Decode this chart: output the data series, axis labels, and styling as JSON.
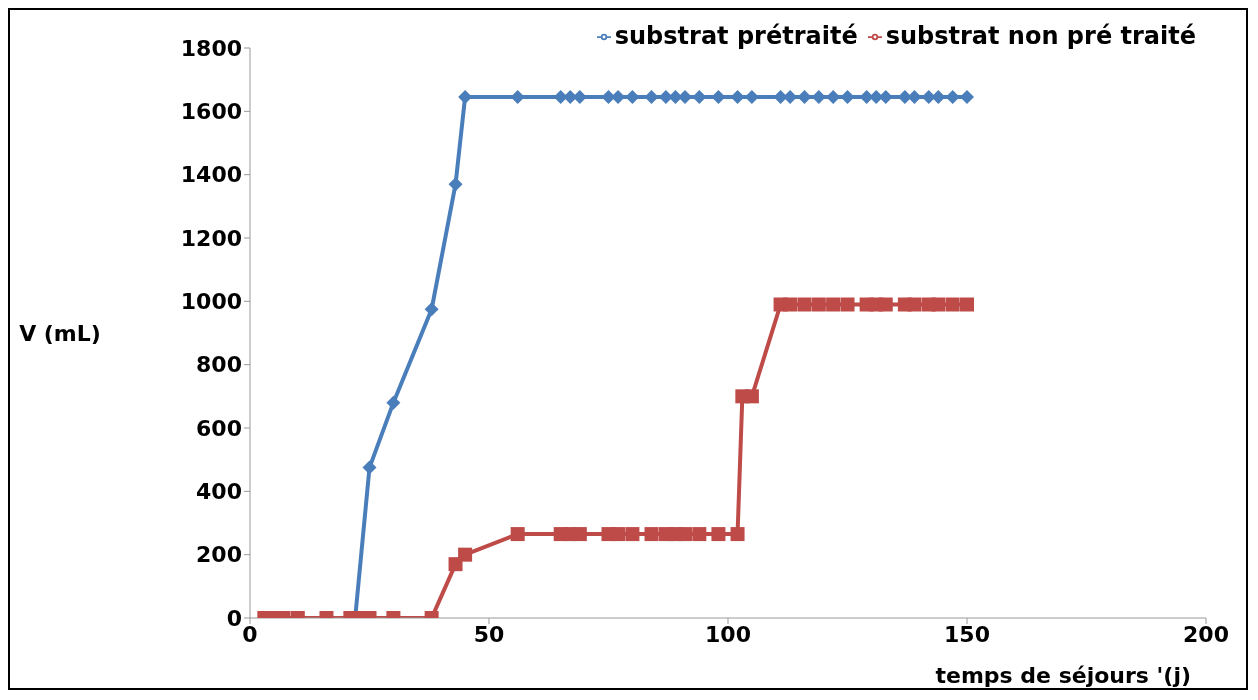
{
  "chart_data": {
    "type": "line",
    "xlabel": "temps de séjours '(j)",
    "ylabel": "V (mL)",
    "xlim": [
      0,
      200
    ],
    "xticks": [
      0,
      50,
      100,
      150,
      200
    ],
    "ylim": [
      0,
      1800
    ],
    "yticks": [
      0,
      200,
      400,
      600,
      800,
      1000,
      1200,
      1400,
      1600,
      1800
    ],
    "grid": false,
    "legend": "top right",
    "series": [
      {
        "name": "substrat prétraité",
        "color": "#4a7ebb",
        "marker": "diamond",
        "x": [
          22,
          25,
          30,
          38,
          43,
          45,
          56,
          65,
          67,
          69,
          75,
          77,
          80,
          84,
          87,
          89,
          91,
          94,
          98,
          102,
          105,
          111,
          113,
          116,
          119,
          122,
          125,
          129,
          131,
          133,
          137,
          139,
          142,
          144,
          147,
          150
        ],
        "values": [
          0,
          475,
          680,
          975,
          1370,
          1645,
          1645,
          1645,
          1645,
          1645,
          1645,
          1645,
          1645,
          1645,
          1645,
          1645,
          1645,
          1645,
          1645,
          1645,
          1645,
          1645,
          1645,
          1645,
          1645,
          1645,
          1645,
          1645,
          1645,
          1645,
          1645,
          1645,
          1645,
          1645,
          1645,
          1645
        ]
      },
      {
        "name": "substrat non pré traité",
        "color": "#be4b48",
        "marker": "square",
        "x": [
          3,
          5,
          7,
          10,
          16,
          21,
          23,
          25,
          30,
          38,
          43,
          45,
          56,
          65,
          67,
          69,
          75,
          77,
          80,
          84,
          87,
          89,
          91,
          94,
          98,
          102,
          103,
          105,
          111,
          113,
          116,
          119,
          122,
          125,
          129,
          131,
          133,
          137,
          139,
          142,
          144,
          147,
          150
        ],
        "values": [
          0,
          0,
          0,
          0,
          0,
          0,
          0,
          0,
          0,
          0,
          170,
          200,
          265,
          265,
          265,
          265,
          265,
          265,
          265,
          265,
          265,
          265,
          265,
          265,
          265,
          265,
          700,
          700,
          990,
          990,
          990,
          990,
          990,
          990,
          990,
          990,
          990,
          990,
          990,
          990,
          990,
          990,
          990
        ]
      }
    ]
  }
}
